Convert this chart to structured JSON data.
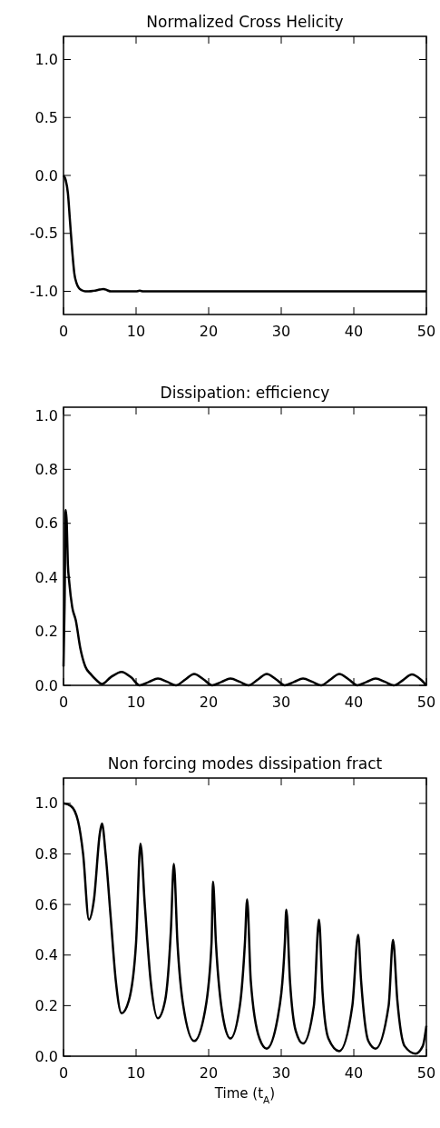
{
  "chart_data": [
    {
      "type": "line",
      "title": "Normalized Cross Helicity",
      "color": "#000000",
      "xlim": [
        0,
        50
      ],
      "ylim": [
        -1.2,
        1.2
      ],
      "xticks": [
        0,
        10,
        20,
        30,
        40,
        50
      ],
      "yticks": [
        {
          "value": -1,
          "label": "-1.0"
        },
        {
          "value": -0.5,
          "label": "-0.5"
        },
        {
          "value": 0,
          "label": "0.0"
        },
        {
          "value": 0.5,
          "label": "0.5"
        },
        {
          "value": 1,
          "label": "1.0"
        }
      ],
      "x": [
        0,
        0.3,
        0.6,
        0.9,
        1.2,
        1.5,
        1.8,
        2.1,
        2.5,
        3,
        3.5,
        4.2,
        5,
        5.5,
        6,
        6.5,
        8,
        10,
        10.5,
        11,
        15,
        25,
        35,
        50
      ],
      "values": [
        0,
        -0.04,
        -0.15,
        -0.4,
        -0.65,
        -0.85,
        -0.93,
        -0.97,
        -0.99,
        -1,
        -1,
        -0.995,
        -0.985,
        -0.98,
        -0.99,
        -1,
        -1,
        -1,
        -0.995,
        -1,
        -1,
        -1,
        -1,
        -1
      ]
    },
    {
      "type": "line",
      "title": "Dissipation: efficiency",
      "color": "#000000",
      "xlim": [
        0,
        50
      ],
      "ylim": [
        0,
        1.03
      ],
      "xticks": [
        0,
        10,
        20,
        30,
        40,
        50
      ],
      "yticks": [
        {
          "value": 0,
          "label": "0.0"
        },
        {
          "value": 0.2,
          "label": "0.2"
        },
        {
          "value": 0.4,
          "label": "0.4"
        },
        {
          "value": 0.6,
          "label": "0.6"
        },
        {
          "value": 0.8,
          "label": "0.8"
        },
        {
          "value": 1,
          "label": "1.0"
        }
      ],
      "x": [
        0,
        0.15,
        0.3,
        0.45,
        0.6,
        0.8,
        1.2,
        1.7,
        2.3,
        3,
        3.8,
        4.5,
        5.3,
        6.5,
        8,
        9.3,
        10.5,
        11.8,
        13,
        14.3,
        15.5,
        16.8,
        18,
        19.3,
        20.5,
        21.8,
        23,
        24.3,
        25.5,
        26.8,
        28,
        29.3,
        30.5,
        31.8,
        33,
        34.3,
        35.5,
        36.8,
        38,
        39.3,
        40.5,
        41.8,
        43,
        44.3,
        45.5,
        46.8,
        48,
        49.2,
        50
      ],
      "values": [
        0.07,
        0.3,
        0.65,
        0.6,
        0.45,
        0.38,
        0.29,
        0.24,
        0.14,
        0.07,
        0.04,
        0.02,
        0.005,
        0.03,
        0.05,
        0.03,
        0,
        0.013,
        0.025,
        0.013,
        0,
        0.022,
        0.042,
        0.022,
        0,
        0.013,
        0.025,
        0.013,
        0,
        0.022,
        0.042,
        0.022,
        0,
        0.013,
        0.025,
        0.013,
        0,
        0.022,
        0.042,
        0.022,
        0,
        0.013,
        0.025,
        0.013,
        0,
        0.02,
        0.04,
        0.022,
        0
      ]
    },
    {
      "type": "line",
      "title": "Non forcing modes dissipation fract",
      "xlabel": "Time (t$_{A}$)",
      "color": "#000000",
      "xlim": [
        0,
        50
      ],
      "ylim": [
        0,
        1.1
      ],
      "xticks": [
        0,
        10,
        20,
        30,
        40,
        50
      ],
      "yticks": [
        {
          "value": 0,
          "label": "0.0"
        },
        {
          "value": 0.2,
          "label": "0.2"
        },
        {
          "value": 0.4,
          "label": "0.4"
        },
        {
          "value": 0.6,
          "label": "0.6"
        },
        {
          "value": 0.8,
          "label": "0.8"
        },
        {
          "value": 1,
          "label": "1.0"
        }
      ],
      "x": [
        0,
        1,
        2,
        2.7,
        3.5,
        4.2,
        5,
        5.3,
        5.8,
        6.5,
        7.2,
        8,
        9,
        10,
        10.6,
        11.2,
        12,
        13,
        14,
        14.8,
        15.2,
        15.7,
        16.5,
        18,
        19.5,
        20.4,
        20.6,
        21,
        22,
        23,
        24.3,
        25,
        25.3,
        25.8,
        27,
        28,
        29.5,
        30.5,
        30.7,
        31.2,
        32,
        33,
        34.5,
        35.2,
        35.7,
        36.5,
        38,
        39.8,
        40.6,
        41,
        42,
        43,
        44.8,
        45.4,
        46,
        47,
        48.5,
        49.5,
        50
      ],
      "values": [
        1,
        0.99,
        0.93,
        0.8,
        0.54,
        0.62,
        0.88,
        0.92,
        0.8,
        0.55,
        0.3,
        0.17,
        0.22,
        0.45,
        0.84,
        0.6,
        0.3,
        0.15,
        0.22,
        0.5,
        0.76,
        0.45,
        0.2,
        0.06,
        0.18,
        0.45,
        0.69,
        0.45,
        0.15,
        0.07,
        0.2,
        0.45,
        0.62,
        0.3,
        0.07,
        0.03,
        0.15,
        0.45,
        0.58,
        0.3,
        0.1,
        0.05,
        0.2,
        0.54,
        0.25,
        0.07,
        0.02,
        0.2,
        0.48,
        0.3,
        0.06,
        0.03,
        0.2,
        0.46,
        0.22,
        0.04,
        0.01,
        0.04,
        0.12
      ]
    }
  ]
}
